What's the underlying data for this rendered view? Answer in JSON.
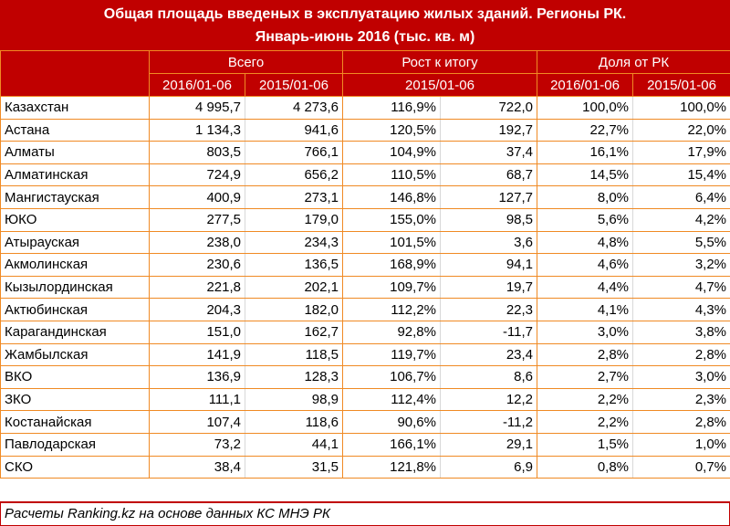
{
  "title": {
    "line1": "Общая площадь введеных в эксплуатацию жилых зданий. Регионы РК.",
    "line2": "Январь-июнь 2016 (тыс. кв. м)"
  },
  "header": {
    "groups": [
      "Всего",
      "Рост к итогу",
      "Доля от РК"
    ],
    "subheaders": [
      "2016/01-06",
      "2015/01-06",
      "2015/01-06",
      "2016/01-06",
      "2015/01-06"
    ]
  },
  "colors": {
    "header_bg": "#c00000",
    "grid": "#f08a24"
  },
  "rows": [
    [
      "Казахстан",
      "4 995,7",
      "4 273,6",
      "116,9%",
      "722,0",
      "100,0%",
      "100,0%"
    ],
    [
      "Астана",
      "1 134,3",
      "941,6",
      "120,5%",
      "192,7",
      "22,7%",
      "22,0%"
    ],
    [
      "Алматы",
      "803,5",
      "766,1",
      "104,9%",
      "37,4",
      "16,1%",
      "17,9%"
    ],
    [
      "Алматинская",
      "724,9",
      "656,2",
      "110,5%",
      "68,7",
      "14,5%",
      "15,4%"
    ],
    [
      "Мангистауская",
      "400,9",
      "273,1",
      "146,8%",
      "127,7",
      "8,0%",
      "6,4%"
    ],
    [
      "ЮКО",
      "277,5",
      "179,0",
      "155,0%",
      "98,5",
      "5,6%",
      "4,2%"
    ],
    [
      "Атырауская",
      "238,0",
      "234,3",
      "101,5%",
      "3,6",
      "4,8%",
      "5,5%"
    ],
    [
      "Акмолинская",
      "230,6",
      "136,5",
      "168,9%",
      "94,1",
      "4,6%",
      "3,2%"
    ],
    [
      "Кызылординская",
      "221,8",
      "202,1",
      "109,7%",
      "19,7",
      "4,4%",
      "4,7%"
    ],
    [
      "Актюбинская",
      "204,3",
      "182,0",
      "112,2%",
      "22,3",
      "4,1%",
      "4,3%"
    ],
    [
      "Карагандинская",
      "151,0",
      "162,7",
      "92,8%",
      "-11,7",
      "3,0%",
      "3,8%"
    ],
    [
      "Жамбылская",
      "141,9",
      "118,5",
      "119,7%",
      "23,4",
      "2,8%",
      "2,8%"
    ],
    [
      "ВКО",
      "136,9",
      "128,3",
      "106,7%",
      "8,6",
      "2,7%",
      "3,0%"
    ],
    [
      "ЗКО",
      "111,1",
      "98,9",
      "112,4%",
      "12,2",
      "2,2%",
      "2,3%"
    ],
    [
      "Костанайская",
      "107,4",
      "118,6",
      "90,6%",
      "-11,2",
      "2,2%",
      "2,8%"
    ],
    [
      "Павлодарская",
      "73,2",
      "44,1",
      "166,1%",
      "29,1",
      "1,5%",
      "1,0%"
    ],
    [
      "СКО",
      "38,4",
      "31,5",
      "121,8%",
      "6,9",
      "0,8%",
      "0,7%"
    ]
  ],
  "footer": "Расчеты Ranking.kz на основе данных КС МНЭ РК"
}
